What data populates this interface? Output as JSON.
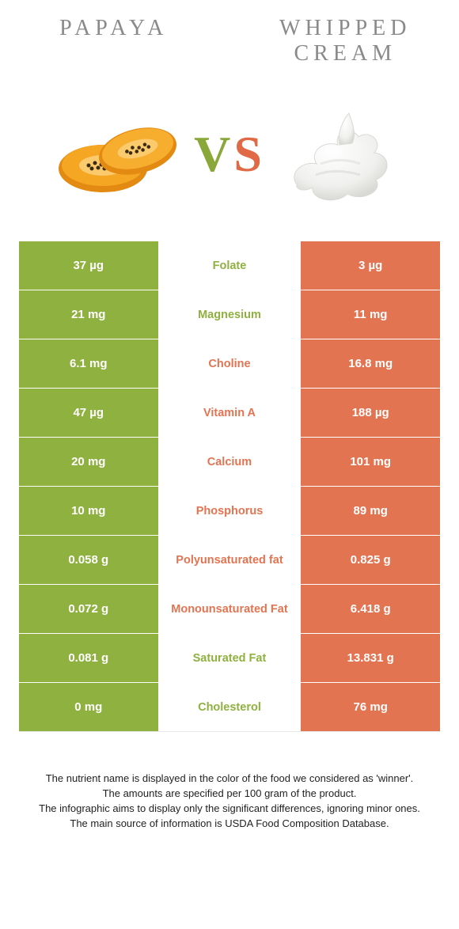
{
  "colors": {
    "left_cell": "#8fb13f",
    "right_cell": "#e37452",
    "mid_left_text": "#8fb13f",
    "mid_right_text": "#e37452",
    "border": "#ffffff",
    "title_text": "#8a8a8a",
    "papaya_flesh": "#f5a623",
    "papaya_skin": "#e28a12",
    "papaya_seed": "#3b2b14",
    "cream_base": "#f4f4f2",
    "cream_shadow": "#d9d9d5",
    "cream_highlight": "#ffffff"
  },
  "header": {
    "left_title": "PAPAYA",
    "right_title": "WHIPPED CREAM",
    "vs_v": "V",
    "vs_s": "S"
  },
  "rows": [
    {
      "left": "37 µg",
      "mid": "Folate",
      "right": "3 µg",
      "winner": "left"
    },
    {
      "left": "21 mg",
      "mid": "Magnesium",
      "right": "11 mg",
      "winner": "left"
    },
    {
      "left": "6.1 mg",
      "mid": "Choline",
      "right": "16.8 mg",
      "winner": "right"
    },
    {
      "left": "47 µg",
      "mid": "Vitamin A",
      "right": "188 µg",
      "winner": "right"
    },
    {
      "left": "20 mg",
      "mid": "Calcium",
      "right": "101 mg",
      "winner": "right"
    },
    {
      "left": "10 mg",
      "mid": "Phosphorus",
      "right": "89 mg",
      "winner": "right"
    },
    {
      "left": "0.058 g",
      "mid": "Polyunsaturated fat",
      "right": "0.825 g",
      "winner": "right"
    },
    {
      "left": "0.072 g",
      "mid": "Monounsaturated Fat",
      "right": "6.418 g",
      "winner": "right"
    },
    {
      "left": "0.081 g",
      "mid": "Saturated Fat",
      "right": "13.831 g",
      "winner": "left"
    },
    {
      "left": "0 mg",
      "mid": "Cholesterol",
      "right": "76 mg",
      "winner": "left"
    }
  ],
  "footer": {
    "line1": "The nutrient name is displayed in the color of the food we considered as 'winner'.",
    "line2": "The amounts are specified per 100 gram of the product.",
    "line3": "The infographic aims to display only the significant differences, ignoring minor ones.",
    "line4": "The main source of information is USDA Food Composition Database."
  }
}
